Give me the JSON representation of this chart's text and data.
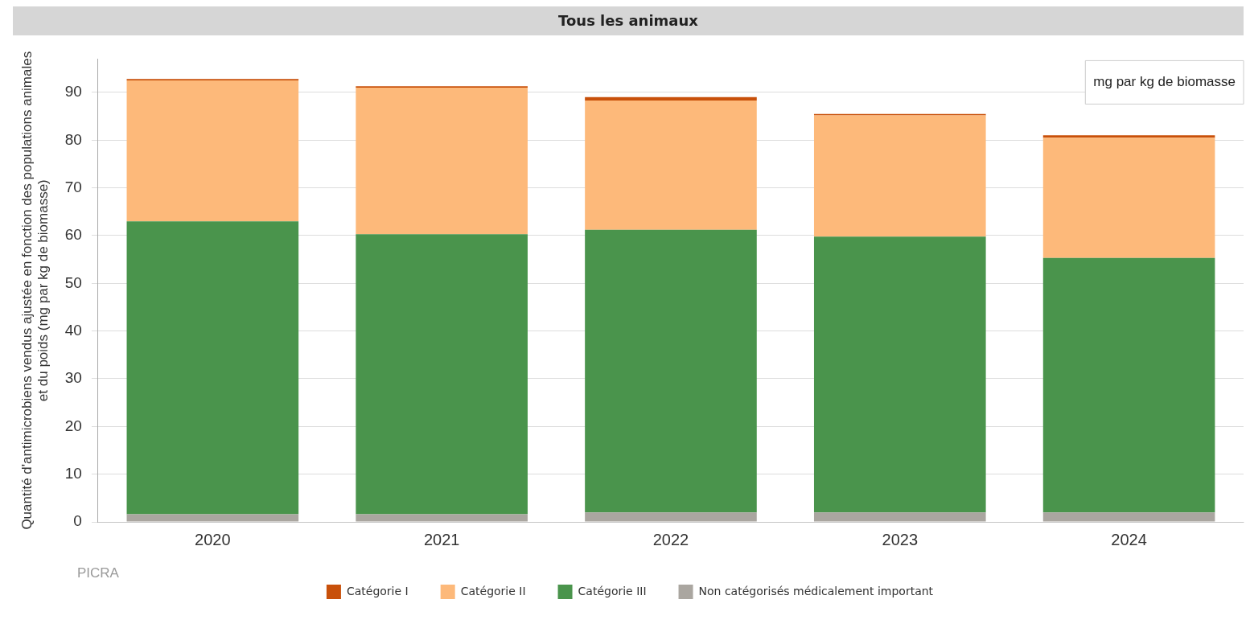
{
  "chart_data": {
    "type": "bar",
    "title": "Tous les animaux",
    "ylabel": "Quantité d'antimicrobiens vendus ajustée en fonction des populations animales et du poids (mg par kg de biomasse)",
    "categories": [
      "2020",
      "2021",
      "2022",
      "2023",
      "2024"
    ],
    "stacked": true,
    "series": [
      {
        "name": "Non catégorisés médicalement important",
        "color": "#aaa6a0",
        "values": [
          1.6,
          1.6,
          2.0,
          2.0,
          2.0
        ]
      },
      {
        "name": "Catégorie III",
        "color": "#4a944c",
        "values": [
          61.4,
          58.7,
          59.2,
          57.8,
          53.3
        ]
      },
      {
        "name": "Catégorie II",
        "color": "#fdb97a",
        "values": [
          29.5,
          30.7,
          27.1,
          25.4,
          25.2
        ]
      },
      {
        "name": "Catégorie I",
        "color": "#c8500a",
        "values": [
          0.3,
          0.3,
          0.7,
          0.3,
          0.5
        ]
      }
    ],
    "ylim": [
      0,
      97
    ],
    "yticks": [
      0,
      10,
      20,
      30,
      40,
      50,
      60,
      70,
      80,
      90
    ],
    "grid": "y",
    "legend": "bottom",
    "annotations": [
      "mg par kg de biomasse",
      "PICRA"
    ]
  }
}
